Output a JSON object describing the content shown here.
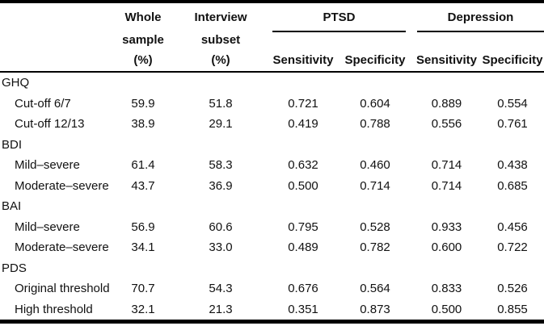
{
  "table": {
    "header": {
      "col_whole": {
        "line1": "Whole",
        "line2": "sample",
        "line3": "(%)"
      },
      "col_interview": {
        "line1": "Interview",
        "line2": "subset",
        "line3": "(%)"
      },
      "groups": {
        "ptsd": "PTSD",
        "depression": "Depression"
      },
      "subcols": {
        "sensitivity": "Sensitivity",
        "specificity": "Specificity"
      }
    },
    "sections": [
      {
        "label": "GHQ",
        "rows": [
          {
            "label": "Cut-off 6/7",
            "values": [
              "59.9",
              "51.8",
              "0.721",
              "0.604",
              "0.889",
              "0.554"
            ]
          },
          {
            "label": "Cut-off 12/13",
            "values": [
              "38.9",
              "29.1",
              "0.419",
              "0.788",
              "0.556",
              "0.761"
            ]
          }
        ]
      },
      {
        "label": "BDI",
        "rows": [
          {
            "label": "Mild–severe",
            "values": [
              "61.4",
              "58.3",
              "0.632",
              "0.460",
              "0.714",
              "0.438"
            ]
          },
          {
            "label": "Moderate–severe",
            "values": [
              "43.7",
              "36.9",
              "0.500",
              "0.714",
              "0.714",
              "0.685"
            ]
          }
        ]
      },
      {
        "label": "BAI",
        "rows": [
          {
            "label": "Mild–severe",
            "values": [
              "56.9",
              "60.6",
              "0.795",
              "0.528",
              "0.933",
              "0.456"
            ]
          },
          {
            "label": "Moderate–severe",
            "values": [
              "34.1",
              "33.0",
              "0.489",
              "0.782",
              "0.600",
              "0.722"
            ]
          }
        ]
      },
      {
        "label": "PDS",
        "rows": [
          {
            "label": "Original threshold",
            "values": [
              "70.7",
              "54.3",
              "0.676",
              "0.564",
              "0.833",
              "0.526"
            ]
          },
          {
            "label": "High threshold",
            "values": [
              "32.1",
              "21.3",
              "0.351",
              "0.873",
              "0.500",
              "0.855"
            ]
          }
        ]
      }
    ]
  },
  "colors": {
    "text": "#111111",
    "rule": "#000000",
    "background": "#ffffff"
  }
}
